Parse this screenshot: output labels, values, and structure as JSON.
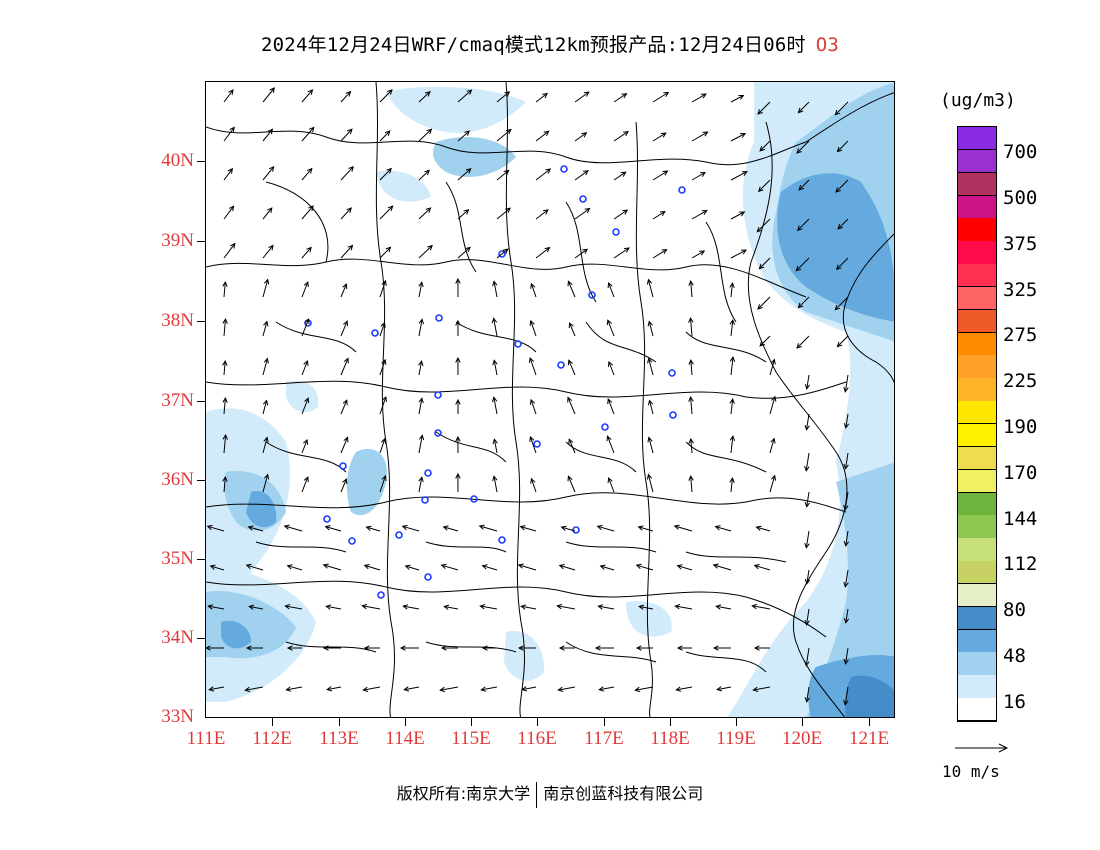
{
  "title": {
    "text": "2024年12月24日WRF/cmaq模式12km预报产品:12月24日06时",
    "pollutant": "O3"
  },
  "axes": {
    "lat_labels": [
      "40N",
      "39N",
      "38N",
      "37N",
      "36N",
      "35N",
      "34N",
      "33N"
    ],
    "lon_labels": [
      "111E",
      "112E",
      "113E",
      "114E",
      "115E",
      "116E",
      "117E",
      "118E",
      "119E",
      "120E",
      "121E"
    ]
  },
  "legend": {
    "unit": "(ug/m3)",
    "labels": [
      "700",
      "500",
      "375",
      "325",
      "275",
      "225",
      "190",
      "170",
      "144",
      "112",
      "80",
      "48",
      "16"
    ],
    "colors": [
      "#8a2be2",
      "#9b30d0",
      "#b03060",
      "#cc1488",
      "#ff0000",
      "#ff0a4a",
      "#ff3050",
      "#ff6464",
      "#f05a28",
      "#ff8c00",
      "#ffa028",
      "#ffb428",
      "#ffe600",
      "#fff000",
      "#f0dc50",
      "#f0f064",
      "#6eb43c",
      "#8cc850",
      "#c8e078",
      "#c8d264",
      "#e6f0c8",
      "#468cc8",
      "#64aade",
      "#a0d2f0",
      "#d2ebfa",
      "#ffffff"
    ]
  },
  "wind_reference": {
    "label": "10 m/s"
  },
  "footer": {
    "left": "版权所有:南京大学",
    "right": "南京创蓝科技有限公司"
  }
}
